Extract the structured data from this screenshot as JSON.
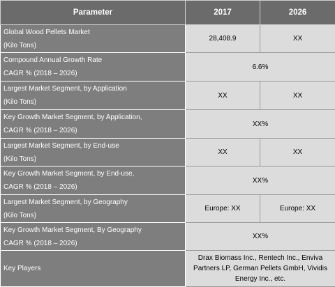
{
  "header": {
    "parameter": "Parameter",
    "year_2017": "2017",
    "year_2026": "2026"
  },
  "rows": [
    {
      "label1": "Global Wood Pellets Market",
      "label2": "(Kilo Tons)",
      "v2017": "28,408.9",
      "v2026": "XX"
    },
    {
      "label1": "Compound Annual Growth Rate",
      "label2": "CAGR % (2018 – 2026)",
      "merged": "6.6%"
    },
    {
      "label1": "Largest Market Segment, by Application",
      "label2": "(Kilo Tons)",
      "v2017": "XX",
      "v2026": "XX"
    },
    {
      "label1": "Key Growth Market Segment, by Application,",
      "label2": "CAGR % (2018 – 2026)",
      "merged": "XX%"
    },
    {
      "label1": "Largest Market Segment, by End-use",
      "label2": "(Kilo Tons)",
      "v2017": "XX",
      "v2026": "XX"
    },
    {
      "label1": "Key Growth Market Segment, by End-use,",
      "label2": "CAGR % (2018 – 2026)",
      "merged": "XX%"
    },
    {
      "label1": "Largest Market Segment, by Geography",
      "label2": "(Kilo Tons)",
      "v2017": "Europe: XX",
      "v2026": "Europe: XX"
    },
    {
      "label1": "Key Growth Market Segment, By Geography",
      "label2": "CAGR % (2018 – 2026)",
      "merged": "XX%"
    },
    {
      "label1": "Key Players",
      "merged1": "Drax Biomass Inc., Rentech Inc., Enviva",
      "merged2": "Partners LP, German Pellets GmbH, Vividis",
      "merged3": "Energy Inc., etc."
    }
  ],
  "colors": {
    "header_bg": "#6b6b6b",
    "param_bg": "#7e7e7e",
    "value_bg": "#dcdcdc"
  }
}
